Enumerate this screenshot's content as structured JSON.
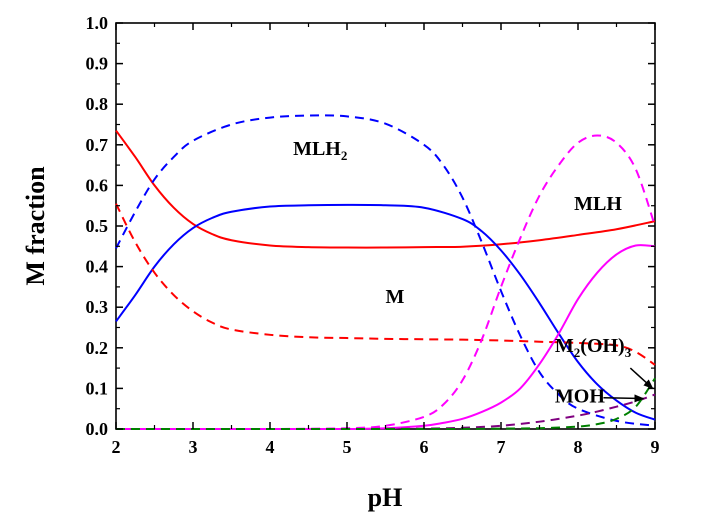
{
  "chart_data": {
    "type": "line",
    "title": "",
    "xlabel": "pH",
    "ylabel": "M fraction",
    "xlim": [
      2,
      9
    ],
    "ylim": [
      0.0,
      1.0
    ],
    "xticks": [
      "2",
      "3",
      "4",
      "5",
      "6",
      "7",
      "8",
      "9"
    ],
    "yticks": [
      "0.0",
      "0.1",
      "0.2",
      "0.3",
      "0.4",
      "0.5",
      "0.6",
      "0.7",
      "0.8",
      "0.9",
      "1.0"
    ],
    "grid": false,
    "series": [
      {
        "id": "red-solid",
        "color": "#ff0000",
        "dash": "solid",
        "x": [
          2,
          2.25,
          2.5,
          2.75,
          3,
          3.25,
          3.5,
          4,
          4.5,
          5,
          5.5,
          6,
          6.5,
          7,
          7.5,
          8,
          8.5,
          9
        ],
        "y": [
          0.735,
          0.67,
          0.6,
          0.545,
          0.505,
          0.48,
          0.465,
          0.452,
          0.448,
          0.447,
          0.447,
          0.448,
          0.449,
          0.455,
          0.465,
          0.478,
          0.492,
          0.512
        ]
      },
      {
        "id": "blue-solid",
        "color": "#0000ff",
        "dash": "solid",
        "x": [
          2,
          2.25,
          2.5,
          2.75,
          3,
          3.25,
          3.5,
          4,
          4.5,
          5,
          5.5,
          6,
          6.5,
          6.75,
          7,
          7.25,
          7.5,
          7.75,
          8,
          8.25,
          8.5,
          8.75,
          9
        ],
        "y": [
          0.265,
          0.33,
          0.4,
          0.455,
          0.495,
          0.52,
          0.535,
          0.548,
          0.551,
          0.552,
          0.551,
          0.545,
          0.517,
          0.487,
          0.44,
          0.38,
          0.31,
          0.235,
          0.165,
          0.11,
          0.07,
          0.04,
          0.023
        ]
      },
      {
        "id": "blue-dashed",
        "color": "#0000ff",
        "dash": "dashed",
        "x": [
          2,
          2.25,
          2.5,
          2.75,
          3,
          3.5,
          4,
          4.5,
          5,
          5.5,
          6,
          6.25,
          6.5,
          6.75,
          7,
          7.25,
          7.5,
          7.75,
          8,
          8.5,
          9
        ],
        "y": [
          0.445,
          0.535,
          0.615,
          0.67,
          0.71,
          0.75,
          0.767,
          0.772,
          0.77,
          0.752,
          0.7,
          0.65,
          0.57,
          0.46,
          0.34,
          0.23,
          0.14,
          0.085,
          0.05,
          0.02,
          0.008
        ]
      },
      {
        "id": "red-dashed",
        "color": "#ff0000",
        "dash": "dashed",
        "x": [
          2,
          2.25,
          2.5,
          2.75,
          3,
          3.25,
          3.5,
          4,
          4.5,
          5,
          5.5,
          6,
          6.5,
          7,
          7.5,
          8,
          8.5,
          8.75,
          9
        ],
        "y": [
          0.555,
          0.46,
          0.385,
          0.33,
          0.29,
          0.262,
          0.245,
          0.232,
          0.226,
          0.224,
          0.222,
          0.221,
          0.22,
          0.218,
          0.215,
          0.212,
          0.206,
          0.19,
          0.158
        ]
      },
      {
        "id": "magenta-dashed",
        "color": "#ff00ff",
        "dash": "dashed",
        "x": [
          2,
          3,
          4,
          5,
          5.5,
          6,
          6.25,
          6.5,
          6.75,
          7,
          7.25,
          7.5,
          7.75,
          8,
          8.25,
          8.5,
          8.75,
          9
        ],
        "y": [
          0,
          0,
          0,
          0.002,
          0.008,
          0.03,
          0.06,
          0.12,
          0.22,
          0.35,
          0.47,
          0.575,
          0.65,
          0.705,
          0.723,
          0.705,
          0.64,
          0.5
        ]
      },
      {
        "id": "magenta-solid",
        "color": "#ff00ff",
        "dash": "solid",
        "x": [
          2,
          3,
          4,
          5,
          5.5,
          6,
          6.25,
          6.5,
          6.75,
          7,
          7.25,
          7.5,
          7.75,
          8,
          8.25,
          8.5,
          8.75,
          9
        ],
        "y": [
          0,
          0,
          0,
          0,
          0.002,
          0.008,
          0.015,
          0.025,
          0.042,
          0.065,
          0.1,
          0.16,
          0.235,
          0.32,
          0.385,
          0.43,
          0.452,
          0.45
        ]
      },
      {
        "id": "purple-dashed",
        "color": "#800080",
        "dash": "dashed",
        "x": [
          2,
          4,
          5,
          6,
          6.5,
          7,
          7.5,
          8,
          8.25,
          8.5,
          8.75,
          9
        ],
        "y": [
          0,
          0,
          0,
          0.001,
          0.003,
          0.008,
          0.018,
          0.033,
          0.043,
          0.055,
          0.068,
          0.085
        ]
      },
      {
        "id": "green-dashed",
        "color": "#008000",
        "dash": "dashed",
        "x": [
          2,
          6,
          7,
          7.5,
          8,
          8.25,
          8.5,
          8.75,
          9
        ],
        "y": [
          0,
          0,
          0.001,
          0.002,
          0.006,
          0.012,
          0.025,
          0.055,
          0.125
        ]
      }
    ],
    "annotations": [
      {
        "text": "MLH",
        "sub": "2",
        "x": 4.3,
        "y": 0.675
      },
      {
        "text": "MLH",
        "sub": "",
        "x": 7.95,
        "y": 0.54
      },
      {
        "text": "M",
        "sub": "",
        "x": 5.5,
        "y": 0.31
      },
      {
        "text": "M",
        "sub": "2",
        "text2": "(OH)",
        "sub2": "3",
        "x": 7.7,
        "y": 0.19
      },
      {
        "text": "MOH",
        "sub": "",
        "x": 7.7,
        "y": 0.065
      }
    ]
  }
}
